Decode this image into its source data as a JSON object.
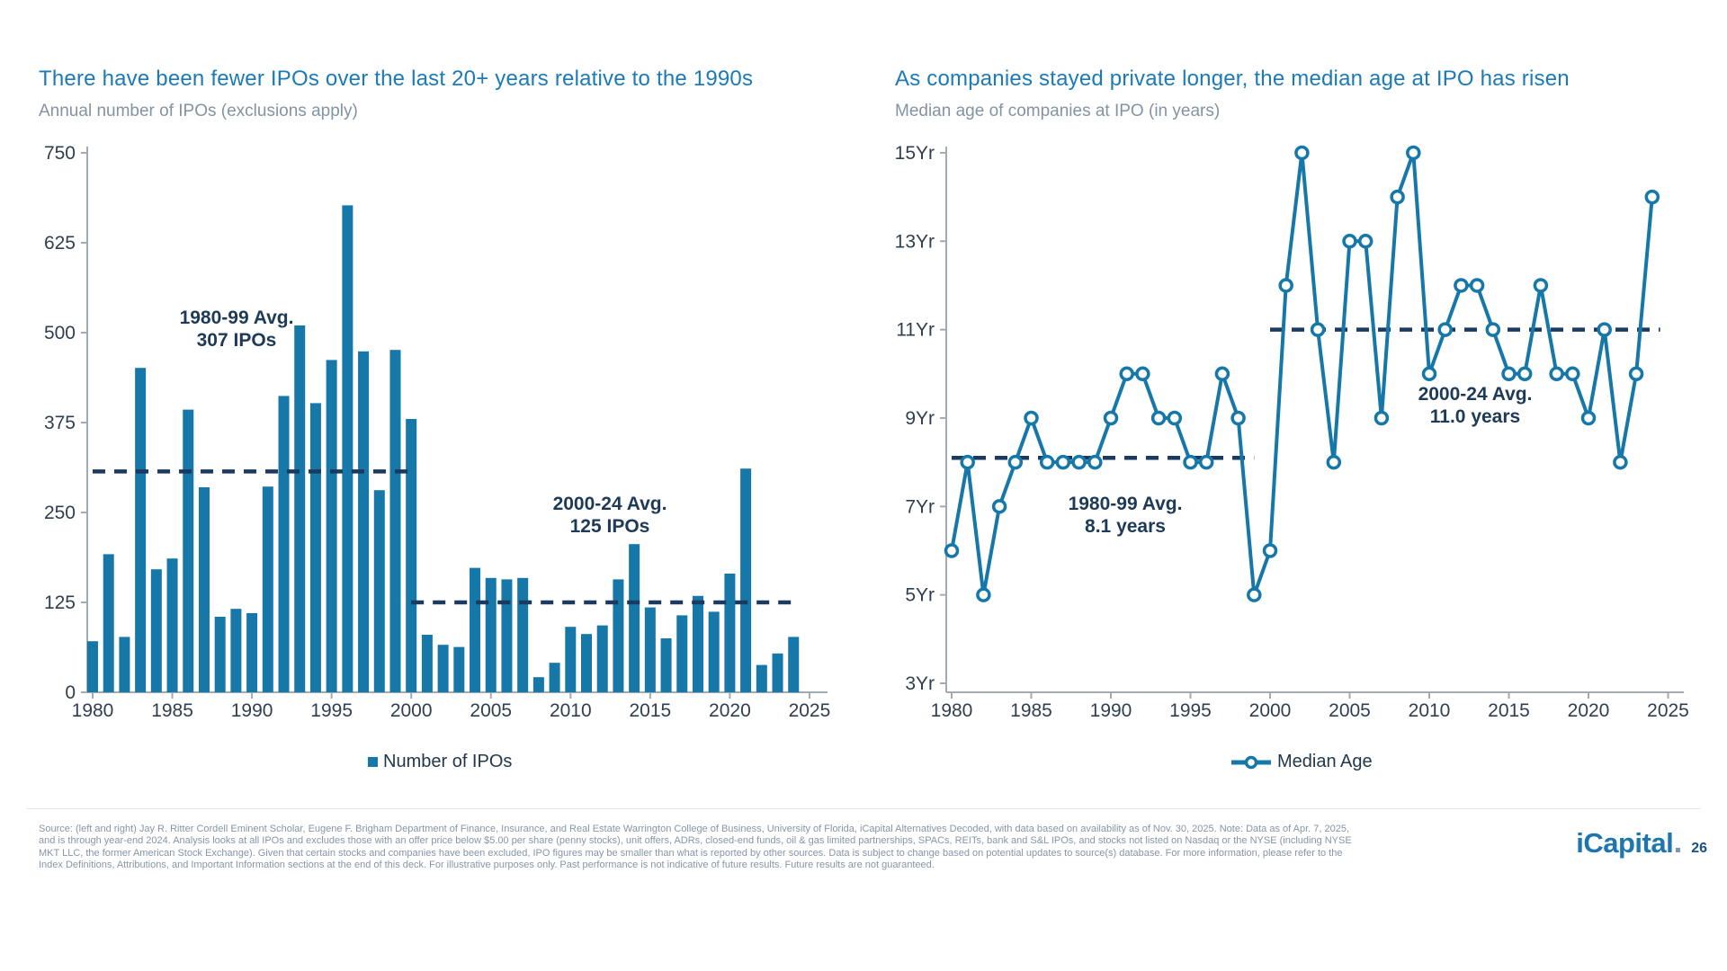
{
  "header": {
    "left_title": "There have been fewer IPOs over the last 20+ years relative to the 1990s",
    "left_subtitle": "Annual number of IPOs (exclusions apply)",
    "right_title": "As companies stayed private longer, the median age at IPO has risen",
    "right_subtitle": "Median age of companies at IPO (in years)"
  },
  "chart_data": [
    {
      "type": "bar",
      "title": "There have been fewer IPOs over the last 20+ years relative to the 1990s",
      "subtitle": "Annual number of IPOs (exclusions apply)",
      "legend": "Number of IPOs",
      "ylabel": "Number of IPOs",
      "ylim": [
        0,
        750
      ],
      "yticks": [
        0,
        125,
        250,
        375,
        500,
        625,
        750
      ],
      "xticks": [
        1980,
        1985,
        1990,
        1995,
        2000,
        2005,
        2010,
        2015,
        2020,
        2025
      ],
      "years": [
        1980,
        1981,
        1982,
        1983,
        1984,
        1985,
        1986,
        1987,
        1988,
        1989,
        1990,
        1991,
        1992,
        1993,
        1994,
        1995,
        1996,
        1997,
        1998,
        1999,
        2000,
        2001,
        2002,
        2003,
        2004,
        2005,
        2006,
        2007,
        2008,
        2009,
        2010,
        2011,
        2012,
        2013,
        2014,
        2015,
        2016,
        2017,
        2018,
        2019,
        2020,
        2021,
        2022,
        2023,
        2024
      ],
      "values": [
        71,
        192,
        77,
        451,
        171,
        186,
        393,
        285,
        105,
        116,
        110,
        286,
        412,
        510,
        402,
        462,
        677,
        474,
        281,
        476,
        380,
        80,
        66,
        63,
        173,
        159,
        157,
        159,
        21,
        41,
        91,
        81,
        93,
        157,
        206,
        118,
        75,
        107,
        134,
        112,
        165,
        311,
        38,
        54,
        77
      ],
      "avg_lines": [
        {
          "label_line1": "1980-99 Avg.",
          "label_line2": "307 IPOs",
          "value": 307,
          "from": 1980,
          "to": 2000
        },
        {
          "label_line1": "2000-24 Avg.",
          "label_line2": "125 IPOs",
          "value": 125,
          "from": 2000,
          "to": 2024
        }
      ],
      "bar_color": "#1677a9",
      "avg_line_color": "#1a3a5f",
      "grid": false,
      "legend_position": "bottom"
    },
    {
      "type": "line",
      "title": "As companies stayed private longer, the median age at IPO has risen",
      "subtitle": "Median age of companies at IPO (in years)",
      "legend": "Median Age",
      "ylabel": "Median Age (years)",
      "ylim": [
        3,
        15
      ],
      "yticks": [
        3,
        5,
        7,
        9,
        11,
        13,
        15
      ],
      "ytick_suffix": "Yr",
      "xticks": [
        1980,
        1985,
        1990,
        1995,
        2000,
        2005,
        2010,
        2015,
        2020,
        2025
      ],
      "years": [
        1980,
        1981,
        1982,
        1983,
        1984,
        1985,
        1986,
        1987,
        1988,
        1989,
        1990,
        1991,
        1992,
        1993,
        1994,
        1995,
        1996,
        1997,
        1998,
        1999,
        2000,
        2001,
        2002,
        2003,
        2004,
        2005,
        2006,
        2007,
        2008,
        2009,
        2010,
        2011,
        2012,
        2013,
        2014,
        2015,
        2016,
        2017,
        2018,
        2019,
        2020,
        2021,
        2022,
        2023,
        2024
      ],
      "values": [
        6,
        8,
        5,
        7,
        8,
        9,
        8,
        8,
        8,
        8,
        9,
        10,
        10,
        9,
        9,
        8,
        8,
        10,
        9,
        5,
        6,
        12,
        15,
        11,
        8,
        13,
        13,
        9,
        14,
        15,
        10,
        11,
        12,
        12,
        11,
        10,
        10,
        12,
        10,
        10,
        9,
        11,
        8,
        10,
        14
      ],
      "avg_lines": [
        {
          "label_line1": "1980-99 Avg.",
          "label_line2": "8.1 years",
          "value": 8.1,
          "from": 1980,
          "to": 1999
        },
        {
          "label_line1": "2000-24 Avg.",
          "label_line2": "11.0 years",
          "value": 11.0,
          "from": 2000,
          "to": 2024.5
        }
      ],
      "line_color": "#1677a9",
      "marker": "open-circle",
      "avg_line_color": "#1a3a5f",
      "grid": false,
      "legend_position": "bottom"
    }
  ],
  "footer": {
    "lines": [
      "Source: (left and right) Jay R. Ritter Cordell Eminent Scholar, Eugene F. Brigham Department of Finance, Insurance, and Real Estate Warrington College of Business, University of Florida, iCapital Alternatives Decoded, with data based on availability as of Nov. 30, 2025. Note: Data as of Apr. 7, 2025,",
      "and is through year-end 2024. Analysis looks at all IPOs and excludes those with an offer price below $5.00 per share (penny stocks), unit offers, ADRs, closed-end funds, oil & gas limited partnerships, SPACs, REITs, bank and S&L IPOs, and stocks not listed on Nasdaq or the NYSE (including NYSE",
      "MKT LLC, the former American Stock Exchange). Given that certain stocks and companies have been excluded, IPO figures may be smaller than what is reported by other sources. Data is subject to change based on potential updates to source(s) database. For more information, please refer to the",
      "Index Definitions, Attributions, and Important Information sections at the end of this deck. For illustrative purposes only. Past performance is not indicative of future results. Future results are not guaranteed."
    ],
    "logo": "iCapital",
    "page_number": "26"
  }
}
